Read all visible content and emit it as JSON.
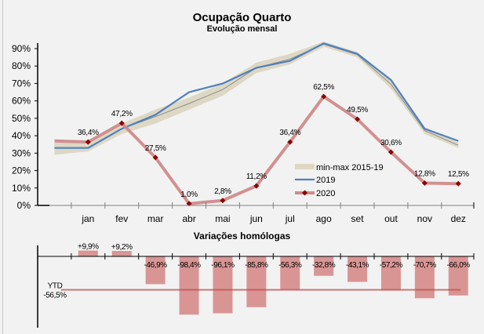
{
  "chart_data": [
    {
      "type": "line",
      "title": "Ocupação Quarto",
      "subtitle": "Evolução mensal",
      "xlabel": "",
      "ylabel": "",
      "categories": [
        "",
        "jan",
        "fev",
        "mar",
        "abr",
        "mai",
        "jun",
        "jul",
        "ago",
        "set",
        "out",
        "nov",
        "dez"
      ],
      "ylim": [
        0,
        90
      ],
      "yticks": [
        0,
        10,
        20,
        30,
        40,
        50,
        60,
        70,
        80,
        90
      ],
      "ytick_labels": [
        "0%",
        "10%",
        "20%",
        "30%",
        "40%",
        "50%",
        "60%",
        "70%",
        "80%",
        "90%"
      ],
      "grid": false,
      "legend_position": "bottom-right",
      "series": [
        {
          "name": "min-max 2015-19",
          "kind": "band",
          "color": "#ddd8c4",
          "min": [
            29,
            31,
            41,
            47,
            55,
            63,
            76,
            81,
            91,
            85,
            67,
            41,
            33
          ],
          "max": [
            36,
            36,
            47,
            55,
            62,
            70,
            82,
            87,
            94,
            88,
            72,
            45,
            36
          ],
          "mid_color": "#8c8c8c",
          "mid": [
            33,
            33,
            44,
            51,
            58.5,
            66.5,
            79,
            84,
            92.5,
            86.5,
            69.5,
            43,
            34.5
          ]
        },
        {
          "name": "2019",
          "kind": "line",
          "color": "#4f81bd",
          "values": [
            33,
            33,
            44,
            52,
            65,
            70,
            79,
            83,
            93,
            87,
            72,
            44,
            37
          ]
        },
        {
          "name": "2020",
          "kind": "line-markers",
          "color": "#d08a8a",
          "marker_color": "#8b0000",
          "values": [
            37,
            36.4,
            47.2,
            27.5,
            1.0,
            2.8,
            11.2,
            36.4,
            62.5,
            49.5,
            30.6,
            12.8,
            12.5
          ],
          "labels": [
            "",
            "36,4%",
            "47,2%",
            "27,5%",
            "1,0%",
            "2,8%",
            "11,2%",
            "36,4%",
            "62,5%",
            "49,5%",
            "30,6%",
            "12,8%",
            "12,5%"
          ]
        }
      ]
    },
    {
      "type": "bar",
      "title": "Variações homólogas",
      "categories": [
        "",
        "jan",
        "fev",
        "mar",
        "abr",
        "mai",
        "jun",
        "jul",
        "ago",
        "set",
        "out",
        "nov",
        "dez"
      ],
      "values": [
        null,
        9.9,
        9.2,
        -46.9,
        -98.4,
        -96.1,
        -85.8,
        -56.3,
        -32.8,
        -43.1,
        -57.2,
        -70.7,
        -66.0
      ],
      "labels": [
        "",
        "+9,9%",
        "+9,2%",
        "-46,9%",
        "-98,4%",
        "-96,1%",
        "-85,8%",
        "-56,3%",
        "-32,8%",
        "-43,1%",
        "-57,2%",
        "-70,7%",
        "-66,0%"
      ],
      "bar_color": "#d99594",
      "ytd": {
        "label": "YTD",
        "value": -56.5,
        "value_label": "-56,5%",
        "color": "#c0504d"
      }
    }
  ],
  "header": {
    "title": "Ocupação Quarto",
    "subtitle": "Evolução mensal"
  },
  "lower": {
    "title": "Variações homólogas"
  },
  "legend": [
    {
      "label": "min-max 2015-19",
      "kind": "band"
    },
    {
      "label": "2019",
      "kind": "line"
    },
    {
      "label": "2020",
      "kind": "line-markers"
    }
  ]
}
